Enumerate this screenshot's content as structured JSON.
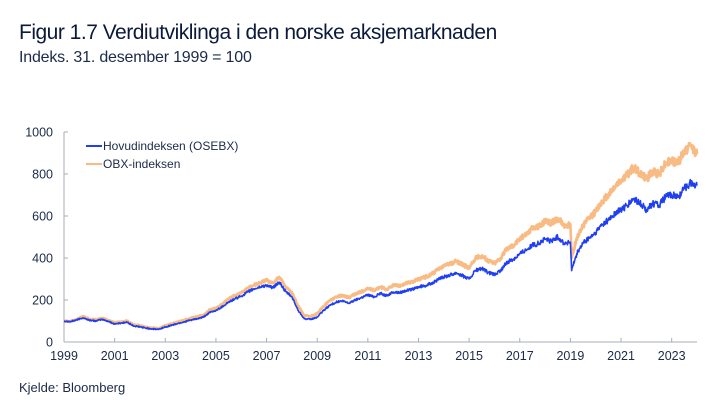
{
  "title": "Figur 1.7 Verdiutviklinga i den norske aksjemarknaden",
  "subtitle": "Indeks. 31. desember 1999 = 100",
  "source": "Kjelde: Bloomberg",
  "chart_data": {
    "type": "line",
    "title": "Figur 1.7 Verdiutviklinga i den norske aksjemarknaden",
    "subtitle": "Indeks. 31. desember 1999 = 100",
    "xlabel": "",
    "ylabel": "",
    "xlim": [
      1999,
      2024
    ],
    "ylim": [
      0,
      1000
    ],
    "x_ticks": [
      1999,
      2001,
      2003,
      2005,
      2007,
      2009,
      2011,
      2013,
      2015,
      2017,
      2019,
      2021,
      2023
    ],
    "y_ticks": [
      0,
      200,
      400,
      600,
      800,
      1000
    ],
    "grid": false,
    "legend_position": "top-left",
    "x": [
      1999.0,
      1999.25,
      1999.5,
      1999.75,
      2000.0,
      2000.25,
      2000.5,
      2000.75,
      2001.0,
      2001.25,
      2001.5,
      2001.75,
      2002.0,
      2002.25,
      2002.5,
      2002.75,
      2003.0,
      2003.25,
      2003.5,
      2003.75,
      2004.0,
      2004.25,
      2004.5,
      2004.75,
      2005.0,
      2005.25,
      2005.5,
      2005.75,
      2006.0,
      2006.25,
      2006.5,
      2006.75,
      2007.0,
      2007.25,
      2007.5,
      2007.75,
      2008.0,
      2008.25,
      2008.5,
      2008.75,
      2009.0,
      2009.25,
      2009.5,
      2009.75,
      2010.0,
      2010.25,
      2010.5,
      2010.75,
      2011.0,
      2011.25,
      2011.5,
      2011.75,
      2012.0,
      2012.25,
      2012.5,
      2012.75,
      2013.0,
      2013.25,
      2013.5,
      2013.75,
      2014.0,
      2014.25,
      2014.5,
      2014.75,
      2015.0,
      2015.25,
      2015.5,
      2015.75,
      2016.0,
      2016.25,
      2016.5,
      2016.75,
      2017.0,
      2017.25,
      2017.5,
      2017.75,
      2018.0,
      2018.25,
      2018.5,
      2018.75,
      2019.0,
      2019.05,
      2019.25,
      2019.5,
      2019.75,
      2020.0,
      2020.25,
      2020.5,
      2020.75,
      2021.0,
      2021.25,
      2021.5,
      2021.75,
      2022.0,
      2022.25,
      2022.5,
      2022.75,
      2023.0,
      2023.25,
      2023.5,
      2023.75,
      2024.0
    ],
    "series": [
      {
        "name": "Hovudindeksen (OSEBX)",
        "color": "#1f3ff0",
        "values": [
          100,
          97,
          105,
          115,
          104,
          100,
          108,
          98,
          86,
          90,
          94,
          76,
          72,
          66,
          62,
          60,
          72,
          80,
          88,
          96,
          104,
          110,
          118,
          140,
          150,
          168,
          190,
          205,
          218,
          238,
          252,
          262,
          270,
          258,
          285,
          240,
          215,
          150,
          110,
          108,
          118,
          150,
          175,
          190,
          195,
          185,
          200,
          212,
          225,
          215,
          232,
          220,
          238,
          235,
          245,
          250,
          262,
          268,
          278,
          295,
          310,
          320,
          330,
          315,
          300,
          340,
          350,
          330,
          320,
          340,
          380,
          395,
          420,
          440,
          460,
          470,
          490,
          480,
          500,
          470,
          475,
          340,
          420,
          470,
          495,
          520,
          560,
          580,
          610,
          630,
          650,
          680,
          660,
          630,
          660,
          650,
          690,
          700,
          690,
          730,
          760,
          745
        ]
      },
      {
        "name": "OBX-indeksen",
        "color": "#f9bb84",
        "values": [
          100,
          98,
          108,
          122,
          110,
          106,
          114,
          104,
          92,
          97,
          100,
          82,
          78,
          70,
          66,
          64,
          78,
          86,
          95,
          105,
          113,
          120,
          128,
          152,
          162,
          180,
          205,
          222,
          235,
          255,
          272,
          282,
          295,
          280,
          310,
          262,
          238,
          170,
          125,
          122,
          135,
          170,
          198,
          215,
          222,
          212,
          228,
          240,
          255,
          245,
          262,
          250,
          270,
          268,
          280,
          285,
          300,
          308,
          322,
          342,
          360,
          372,
          385,
          368,
          352,
          398,
          410,
          388,
          375,
          400,
          445,
          462,
          490,
          515,
          540,
          552,
          575,
          565,
          590,
          555,
          560,
          400,
          495,
          555,
          590,
          620,
          670,
          700,
          740,
          770,
          795,
          830,
          805,
          775,
          810,
          800,
          850,
          865,
          855,
          905,
          935,
          895
        ]
      }
    ]
  }
}
